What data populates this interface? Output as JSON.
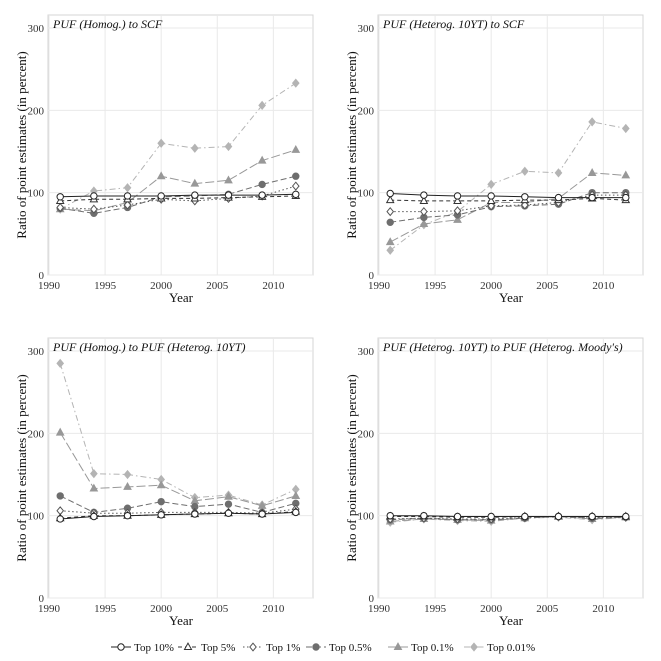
{
  "chart_data": {
    "type": "line",
    "xlabel": "Year",
    "ylabel": "Ratio of point estimates (in percent)",
    "xlim": [
      1990,
      2013
    ],
    "ylim": [
      0,
      300
    ],
    "x_ticks": [
      "1990",
      "1995",
      "2000",
      "2005",
      "2010"
    ],
    "y_ticks": [
      "0",
      "100",
      "200",
      "300"
    ],
    "x": [
      1991,
      1994,
      1997,
      2000,
      2003,
      2006,
      2009,
      2012
    ],
    "series_style": [
      {
        "name": "Top 10%",
        "marker": "circle-open",
        "dash": "solid",
        "color": "#222222"
      },
      {
        "name": "Top 5%",
        "marker": "triangle-open",
        "dash": "4,3",
        "color": "#333333"
      },
      {
        "name": "Top 1%",
        "marker": "diamond-open",
        "dash": "1.5,2.5",
        "color": "#555555"
      },
      {
        "name": "Top 0.5%",
        "marker": "circle-filled",
        "dash": "6,3",
        "color": "#6e6e6e"
      },
      {
        "name": "Top 0.1%",
        "marker": "triangle-filled",
        "dash": "9,3",
        "color": "#989898"
      },
      {
        "name": "Top 0.01%",
        "marker": "diamond-filled",
        "dash": "6,3,1.5,3",
        "color": "#b4b4b4"
      }
    ],
    "panels": [
      {
        "title": "PUF (Homog.) to SCF",
        "series": [
          {
            "name": "Top 10%",
            "values": [
              95,
              96,
              96,
              96,
              97,
              97,
              97,
              98
            ]
          },
          {
            "name": "Top 5%",
            "values": [
              90,
              92,
              92,
              93,
              93,
              94,
              95,
              96
            ]
          },
          {
            "name": "Top 1%",
            "values": [
              82,
              80,
              85,
              92,
              90,
              93,
              96,
              108
            ]
          },
          {
            "name": "Top 0.5%",
            "values": [
              81,
              75,
              82,
              95,
              96,
              98,
              110,
              120
            ]
          },
          {
            "name": "Top 0.1%",
            "values": [
              80,
              78,
              88,
              120,
              111,
              115,
              139,
              152
            ]
          },
          {
            "name": "Top 0.01%",
            "values": [
              80,
              102,
              106,
              160,
              154,
              156,
              206,
              233
            ]
          }
        ]
      },
      {
        "title": "PUF (Heterog. 10YT) to SCF",
        "series": [
          {
            "name": "Top 10%",
            "values": [
              99,
              97,
              96,
              96,
              95,
              94,
              94,
              94
            ]
          },
          {
            "name": "Top 5%",
            "values": [
              91,
              90,
              90,
              90,
              91,
              91,
              93,
              91
            ]
          },
          {
            "name": "Top 1%",
            "values": [
              77,
              77,
              78,
              84,
              85,
              88,
              97,
              97
            ]
          },
          {
            "name": "Top 0.5%",
            "values": [
              64,
              70,
              73,
              83,
              84,
              86,
              100,
              100
            ]
          },
          {
            "name": "Top 0.1%",
            "values": [
              40,
              62,
              67,
              88,
              88,
              93,
              124,
              121
            ]
          },
          {
            "name": "Top 0.01%",
            "values": [
              30,
              61,
              77,
              110,
              126,
              124,
              186,
              178
            ]
          }
        ]
      },
      {
        "title": "PUF (Homog.) to PUF (Heterog. 10YT)",
        "series": [
          {
            "name": "Top 10%",
            "values": [
              96,
              99,
              100,
              101,
              102,
              103,
              102,
              104
            ]
          },
          {
            "name": "Top 5%",
            "values": [
              97,
              100,
              100,
              101,
              102,
              103,
              102,
              105
            ]
          },
          {
            "name": "Top 1%",
            "values": [
              106,
              103,
              103,
              104,
              104,
              104,
              103,
              108
            ]
          },
          {
            "name": "Top 0.5%",
            "values": [
              124,
              104,
              109,
              117,
              111,
              114,
              104,
              115
            ]
          },
          {
            "name": "Top 0.1%",
            "values": [
              201,
              133,
              135,
              137,
              118,
              123,
              112,
              124
            ]
          },
          {
            "name": "Top 0.01%",
            "values": [
              285,
              151,
              150,
              144,
              122,
              125,
              113,
              132
            ]
          }
        ]
      },
      {
        "title": "PUF (Heterog. 10YT) to PUF (Heterog. Moody's)",
        "series": [
          {
            "name": "Top 10%",
            "values": [
              100,
              100,
              99,
              99,
              99,
              99,
              99,
              99
            ]
          },
          {
            "name": "Top 5%",
            "values": [
              99,
              99,
              98,
              98,
              99,
              99,
              99,
              99
            ]
          },
          {
            "name": "Top 1%",
            "values": [
              96,
              97,
              96,
              96,
              98,
              99,
              98,
              98
            ]
          },
          {
            "name": "Top 0.5%",
            "values": [
              95,
              97,
              95,
              95,
              97,
              99,
              97,
              98
            ]
          },
          {
            "name": "Top 0.1%",
            "values": [
              93,
              96,
              95,
              94,
              97,
              99,
              96,
              98
            ]
          },
          {
            "name": "Top 0.01%",
            "values": [
              92,
              96,
              94,
              93,
              97,
              98,
              95,
              98
            ]
          }
        ]
      }
    ]
  }
}
